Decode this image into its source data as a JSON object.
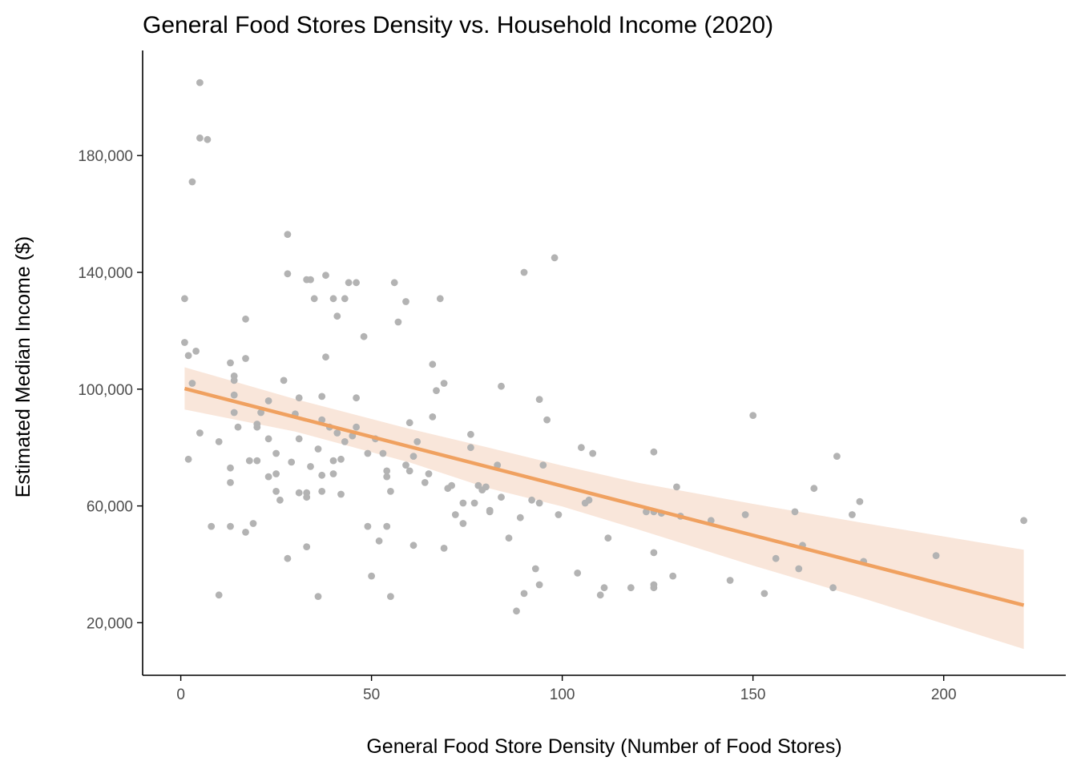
{
  "chart_data": {
    "type": "scatter",
    "title": "General Food Stores Density vs. Household Income (2020)",
    "xlabel": "General Food Store Density (Number of Food Stores)",
    "ylabel": "Estimated Median Income ($)",
    "xlim": [
      -10,
      232
    ],
    "ylim": [
      2000,
      216000
    ],
    "x_ticks": [
      0,
      50,
      100,
      150,
      200
    ],
    "x_tick_labels": [
      "0",
      "50",
      "100",
      "150",
      "200"
    ],
    "y_ticks": [
      20000,
      60000,
      100000,
      140000,
      180000
    ],
    "y_tick_labels": [
      "20,000",
      "60,000",
      "100,000",
      "140,000",
      "180,000"
    ],
    "grid": false,
    "colors": {
      "points": "#b3b3b3",
      "trend_line": "#f0a160",
      "confidence_band": "#f9e6da"
    },
    "series": [
      {
        "type": "scatter",
        "points": [
          [
            1,
            131000
          ],
          [
            1,
            116000
          ],
          [
            2,
            111500
          ],
          [
            2,
            76000
          ],
          [
            3,
            171000
          ],
          [
            3,
            102000
          ],
          [
            4,
            113000
          ],
          [
            5,
            205000
          ],
          [
            5,
            186000
          ],
          [
            5,
            85000
          ],
          [
            7,
            185500
          ],
          [
            8,
            53000
          ],
          [
            10,
            82000
          ],
          [
            10,
            29500
          ],
          [
            13,
            109000
          ],
          [
            13,
            73000
          ],
          [
            13,
            68000
          ],
          [
            13,
            53000
          ],
          [
            14,
            104500
          ],
          [
            14,
            103000
          ],
          [
            14,
            98000
          ],
          [
            14,
            92000
          ],
          [
            15,
            87000
          ],
          [
            17,
            124000
          ],
          [
            17,
            110500
          ],
          [
            17,
            51000
          ],
          [
            18,
            75500
          ],
          [
            19,
            54000
          ],
          [
            20,
            88000
          ],
          [
            20,
            87000
          ],
          [
            20,
            75500
          ],
          [
            21,
            92000
          ],
          [
            23,
            96000
          ],
          [
            23,
            83000
          ],
          [
            23,
            70000
          ],
          [
            25,
            78000
          ],
          [
            25,
            71000
          ],
          [
            25,
            65000
          ],
          [
            26,
            62000
          ],
          [
            27,
            103000
          ],
          [
            28,
            153000
          ],
          [
            28,
            139500
          ],
          [
            28,
            42000
          ],
          [
            29,
            75000
          ],
          [
            30,
            91500
          ],
          [
            31,
            97000
          ],
          [
            31,
            83000
          ],
          [
            31,
            64500
          ],
          [
            33,
            137500
          ],
          [
            33,
            64500
          ],
          [
            33,
            63000
          ],
          [
            33,
            46000
          ],
          [
            34,
            137500
          ],
          [
            34,
            73500
          ],
          [
            35,
            131000
          ],
          [
            36,
            79500
          ],
          [
            36,
            29000
          ],
          [
            37,
            97500
          ],
          [
            37,
            89500
          ],
          [
            37,
            70500
          ],
          [
            37,
            65000
          ],
          [
            38,
            139000
          ],
          [
            38,
            111000
          ],
          [
            39,
            87000
          ],
          [
            40,
            131000
          ],
          [
            40,
            75500
          ],
          [
            40,
            71000
          ],
          [
            41,
            125000
          ],
          [
            41,
            85000
          ],
          [
            42,
            64000
          ],
          [
            42,
            76000
          ],
          [
            43,
            131000
          ],
          [
            43,
            82000
          ],
          [
            44,
            136500
          ],
          [
            45,
            84000
          ],
          [
            46,
            136500
          ],
          [
            46,
            97000
          ],
          [
            46,
            87000
          ],
          [
            48,
            118000
          ],
          [
            49,
            78000
          ],
          [
            49,
            53000
          ],
          [
            50,
            36000
          ],
          [
            51,
            83000
          ],
          [
            52,
            48000
          ],
          [
            53,
            78000
          ],
          [
            54,
            72000
          ],
          [
            54,
            70000
          ],
          [
            54,
            53000
          ],
          [
            55,
            65000
          ],
          [
            55,
            29000
          ],
          [
            56,
            136500
          ],
          [
            57,
            123000
          ],
          [
            59,
            130000
          ],
          [
            59,
            74000
          ],
          [
            60,
            88500
          ],
          [
            60,
            72000
          ],
          [
            61,
            77000
          ],
          [
            61,
            46500
          ],
          [
            62,
            82000
          ],
          [
            64,
            68000
          ],
          [
            65,
            71000
          ],
          [
            66,
            108500
          ],
          [
            66,
            90500
          ],
          [
            67,
            99500
          ],
          [
            68,
            131000
          ],
          [
            69,
            102000
          ],
          [
            69,
            45500
          ],
          [
            70,
            66000
          ],
          [
            71,
            67000
          ],
          [
            72,
            57000
          ],
          [
            74,
            61000
          ],
          [
            74,
            54000
          ],
          [
            76,
            84500
          ],
          [
            76,
            80000
          ],
          [
            77,
            61000
          ],
          [
            78,
            67000
          ],
          [
            79,
            65500
          ],
          [
            80,
            66500
          ],
          [
            81,
            58500
          ],
          [
            81,
            58000
          ],
          [
            83,
            74000
          ],
          [
            84,
            101000
          ],
          [
            84,
            63000
          ],
          [
            86,
            49000
          ],
          [
            88,
            24000
          ],
          [
            89,
            56000
          ],
          [
            90,
            140000
          ],
          [
            90,
            30000
          ],
          [
            92,
            62000
          ],
          [
            93,
            38500
          ],
          [
            94,
            96500
          ],
          [
            94,
            61000
          ],
          [
            94,
            33000
          ],
          [
            95,
            74000
          ],
          [
            96,
            89500
          ],
          [
            98,
            145000
          ],
          [
            99,
            57000
          ],
          [
            104,
            37000
          ],
          [
            105,
            80000
          ],
          [
            106,
            61000
          ],
          [
            107,
            62000
          ],
          [
            108,
            78000
          ],
          [
            110,
            29500
          ],
          [
            111,
            32000
          ],
          [
            112,
            49000
          ],
          [
            118,
            32000
          ],
          [
            122,
            58000
          ],
          [
            124,
            78500
          ],
          [
            124,
            58000
          ],
          [
            124,
            44000
          ],
          [
            124,
            33000
          ],
          [
            124,
            32000
          ],
          [
            126,
            57500
          ],
          [
            129,
            36000
          ],
          [
            130,
            66500
          ],
          [
            131,
            56500
          ],
          [
            139,
            55000
          ],
          [
            144,
            34500
          ],
          [
            148,
            57000
          ],
          [
            150,
            91000
          ],
          [
            153,
            30000
          ],
          [
            156,
            42000
          ],
          [
            161,
            58000
          ],
          [
            162,
            38500
          ],
          [
            163,
            46500
          ],
          [
            166,
            66000
          ],
          [
            171,
            32000
          ],
          [
            172,
            77000
          ],
          [
            176,
            57000
          ],
          [
            178,
            61500
          ],
          [
            179,
            41000
          ],
          [
            198,
            43000
          ],
          [
            221,
            55000
          ]
        ]
      },
      {
        "type": "line",
        "x": [
          1,
          221
        ],
        "y": [
          100200,
          26000
        ]
      },
      {
        "type": "area",
        "x": [
          1,
          30,
          60,
          80,
          100,
          120,
          150,
          180,
          221
        ],
        "y_upper": [
          107500,
          96600,
          86400,
          80200,
          73800,
          67900,
          60700,
          53900,
          45000
        ],
        "y_lower": [
          93000,
          85500,
          74900,
          66300,
          59800,
          51900,
          39600,
          27900,
          11000
        ]
      }
    ]
  }
}
